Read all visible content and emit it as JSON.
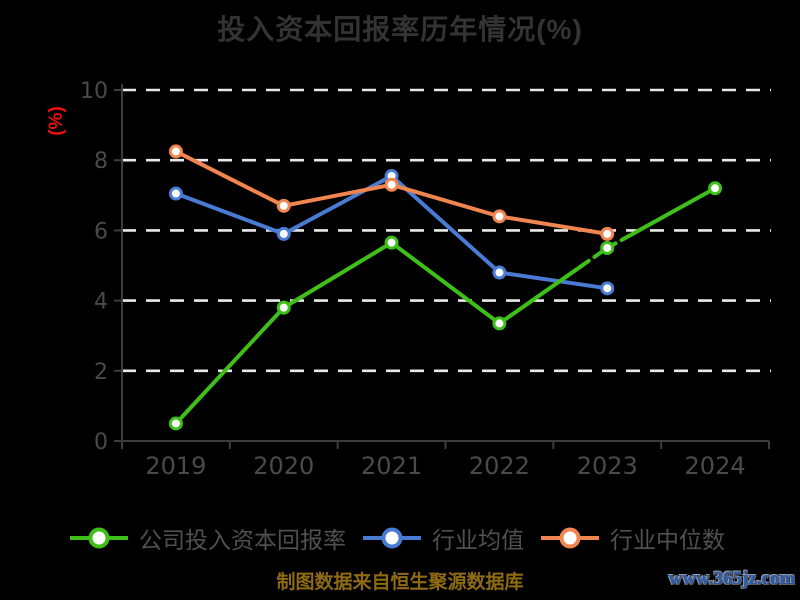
{
  "chart_data": {
    "type": "line",
    "title": "投入资本回报率历年情况(%)",
    "y_axis_label": "(%)",
    "categories": [
      "2019",
      "2020",
      "2021",
      "2022",
      "2023",
      "2024"
    ],
    "ylim": [
      0,
      10
    ],
    "yticks": [
      0,
      2,
      4,
      6,
      8,
      10
    ],
    "grid": "horizontal dashed white lines on black background",
    "legend_position": "bottom",
    "series": [
      {
        "name": "公司投入资本回报率",
        "color": "#3fbf1a",
        "values": [
          0.5,
          3.8,
          5.65,
          3.35,
          5.5,
          7.2
        ],
        "note": "short dashed segment around 2023 point"
      },
      {
        "name": "行业均值",
        "color": "#4a7bd4",
        "values": [
          7.05,
          5.9,
          7.55,
          4.8,
          4.35,
          null
        ]
      },
      {
        "name": "行业中位数",
        "color": "#f0854f",
        "values": [
          8.25,
          6.7,
          7.3,
          6.4,
          5.9,
          null
        ]
      }
    ]
  },
  "colors": {
    "background": "#000000",
    "title": "#333333",
    "axis_line": "#3d3d3d",
    "axis_labels": "#4a4a4a",
    "gridline": "#e9e9e9",
    "unit_label": "#ee1111",
    "legend_text": "#505050",
    "source_text": "#8e6b12",
    "watermark": "#2b5cb0",
    "marker_fill": "#ffffff"
  },
  "footer": {
    "source_text": "制图数据来自恒生聚源数据库",
    "watermark": "www.365jz.com"
  }
}
